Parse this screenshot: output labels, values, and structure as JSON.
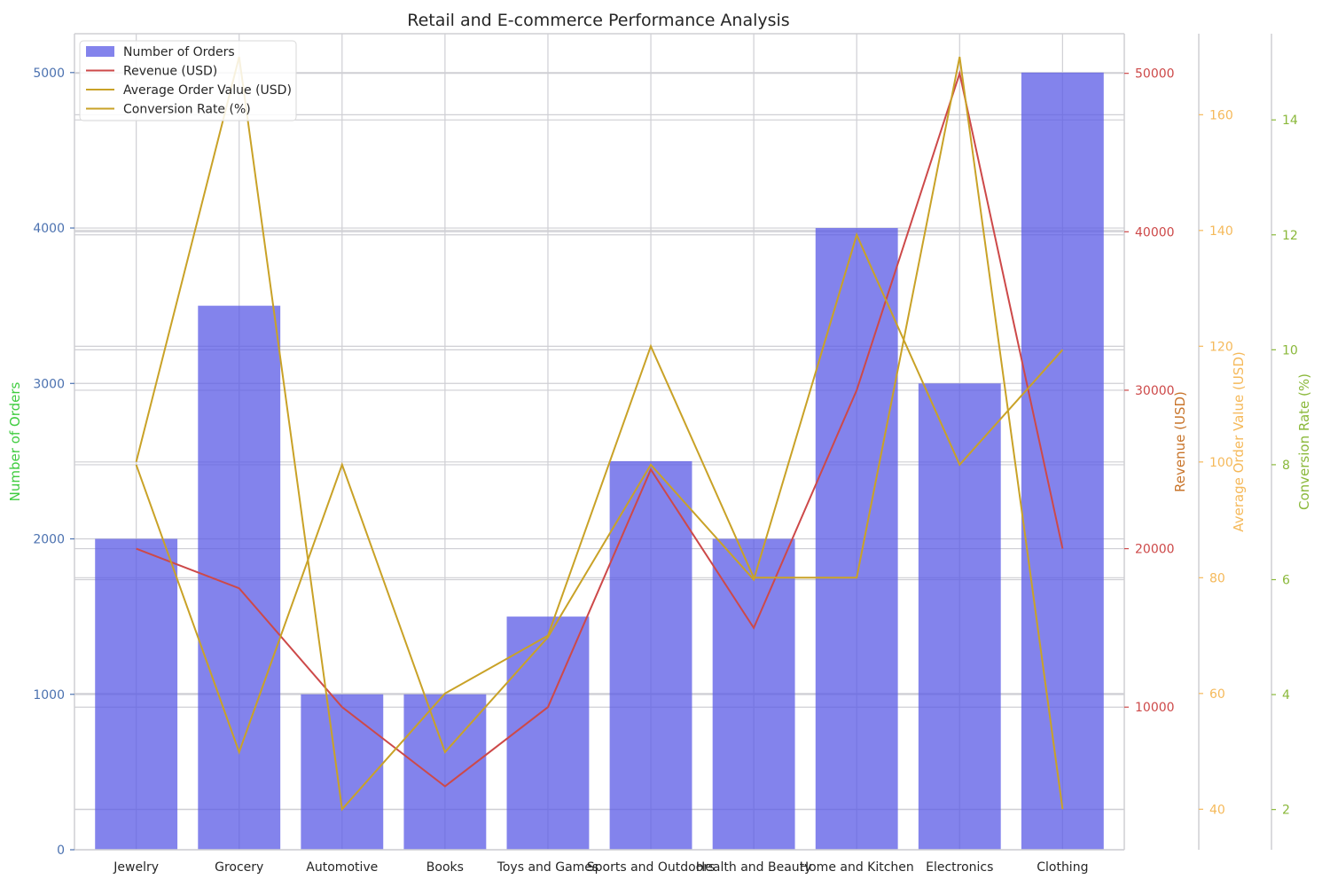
{
  "chart_data": {
    "type": "bar",
    "title": "Retail and E-commerce Performance Analysis",
    "categories": [
      "Jewelry",
      "Grocery",
      "Automotive",
      "Books",
      "Toys and Games",
      "Sports and Outdoors",
      "Health and Beauty",
      "Home and Kitchen",
      "Electronics",
      "Clothing"
    ],
    "series": [
      {
        "name": "Number of Orders",
        "type": "bar",
        "axis": "Number of Orders",
        "color": "#5a5ae6",
        "values": [
          2000,
          3500,
          1000,
          1000,
          1500,
          2500,
          2000,
          4000,
          3000,
          5000
        ]
      },
      {
        "name": "Revenue (USD)",
        "type": "line",
        "axis": "Revenue (USD)",
        "color": "#cd4949",
        "values": [
          20000,
          17500,
          10000,
          5000,
          10000,
          25000,
          15000,
          30000,
          50000,
          20000
        ]
      },
      {
        "name": "Average Order Value (USD)",
        "type": "line",
        "axis": "Average Order Value (USD)",
        "color": "#c9a227",
        "values": [
          100,
          170,
          40,
          60,
          70,
          120,
          80,
          80,
          170,
          40
        ]
      },
      {
        "name": "Conversion Rate (%)",
        "type": "line",
        "axis": "Conversion Rate (%)",
        "color": "#c9a227",
        "values": [
          8,
          3,
          8,
          3,
          5,
          8,
          6,
          12,
          8,
          10
        ]
      }
    ],
    "axes": [
      {
        "label": "Number of Orders",
        "side": "left",
        "ylim": [
          0,
          5250
        ],
        "ticks": [
          0,
          1000,
          2000,
          3000,
          4000,
          5000
        ],
        "label_color": "#3fcc3f",
        "tick_color": "#4c72b0"
      },
      {
        "label": "Revenue (USD)",
        "side": "right",
        "ylim": [
          1000,
          52500
        ],
        "ticks": [
          10000,
          20000,
          30000,
          40000,
          50000
        ],
        "label_color": "#c8742a",
        "tick_color": "#cd4949"
      },
      {
        "label": "Average Order Value (USD)",
        "side": "right",
        "ylim": [
          33,
          174
        ],
        "ticks": [
          40,
          60,
          80,
          100,
          120,
          140,
          160
        ],
        "label_color": "#f5b95a",
        "tick_color": "#f5b95a"
      },
      {
        "label": "Conversion Rate (%)",
        "side": "right",
        "ylim": [
          1.3,
          15.5
        ],
        "ticks": [
          2,
          4,
          6,
          8,
          10,
          12,
          14
        ],
        "label_color": "#8ab83a",
        "tick_color": "#8ab83a"
      }
    ],
    "grid": true,
    "legend": "top-left"
  }
}
